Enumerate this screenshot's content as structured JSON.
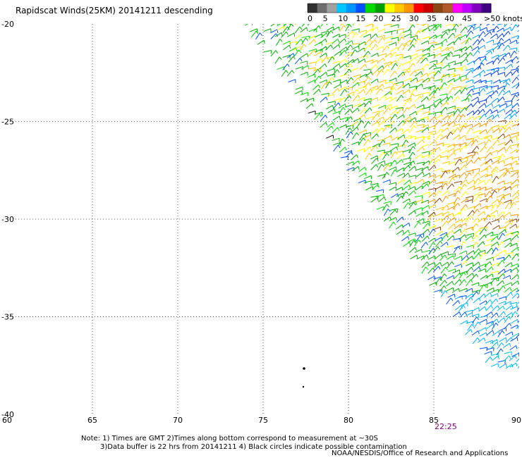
{
  "title": "Rapidscat Winds(25KM) 20141211 descending",
  "colorbar": {
    "colors": [
      "#303030",
      "#6e6e6e",
      "#a0a0a0",
      "#00c8ff",
      "#0096ff",
      "#0050ff",
      "#00dc00",
      "#00a000",
      "#ffff00",
      "#ffc800",
      "#ff9600",
      "#ff0000",
      "#c80000",
      "#8b4513",
      "#b05a2a",
      "#ff00ff",
      "#c000ff",
      "#8000c0",
      "#400080"
    ],
    "labels": [
      "0",
      "5",
      "10",
      "15",
      "20",
      "25",
      "30",
      "35",
      "40",
      "45",
      ">50 knots"
    ]
  },
  "map": {
    "lon_ticks": [
      "60",
      "65",
      "70",
      "75",
      "80",
      "85",
      "90"
    ],
    "lat_ticks": [
      "-20",
      "-25",
      "-30",
      "-35",
      "-40"
    ],
    "lon_range": [
      60,
      90
    ],
    "lat_range": [
      -20,
      -40
    ],
    "swath_time": "22:25"
  },
  "notes": {
    "line1": "Note: 1) Times are GMT 2)Times along bottom correspond to measurement at ~30S",
    "line2": "3)Data buffer is 22 hrs from 20141211 4) Black circles indicate possible contamination"
  },
  "credit": "NOAA/NESDIS/Office of Research and Applications"
}
